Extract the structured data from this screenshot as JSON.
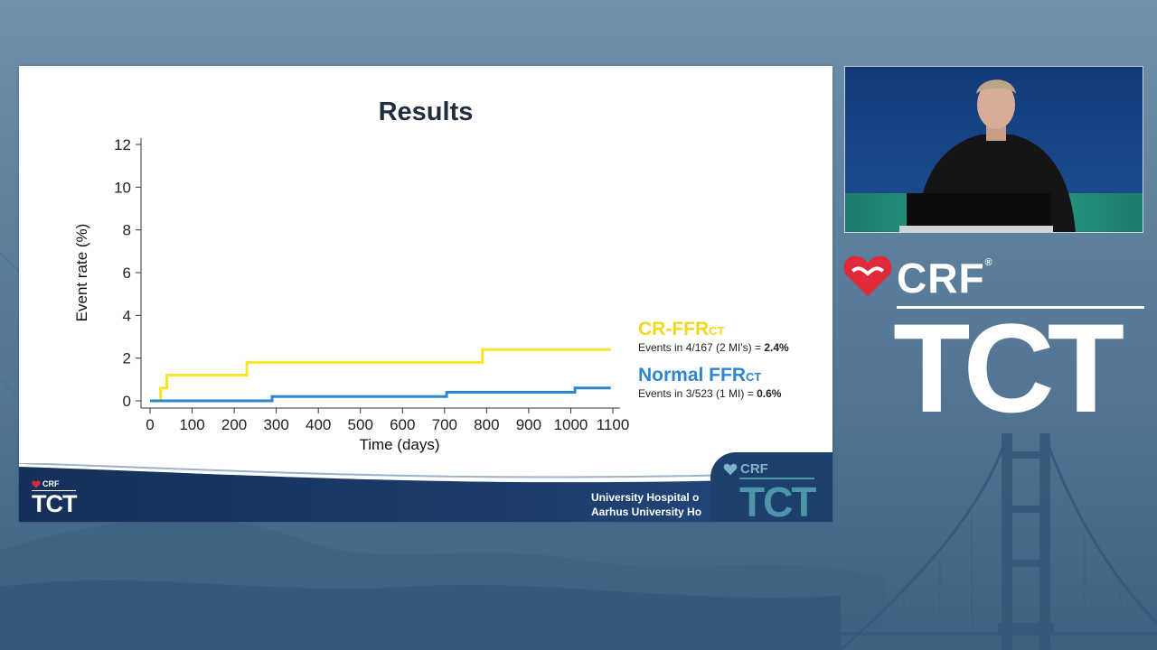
{
  "slide": {
    "title": "Results",
    "institution_line1": "University Hospital o",
    "institution_line2": "Aarhus University Ho",
    "footer_logo_crf": "CRF",
    "footer_logo_tct": "TCT"
  },
  "brand": {
    "crf": "CRF",
    "registered": "®",
    "tct": "TCT"
  },
  "legend": {
    "cr": {
      "name": "CR-FFR",
      "subscript": "CT",
      "events_text": "Events in 4/167 (2 MI's) = ",
      "rate": "2.4%"
    },
    "normal": {
      "name": "Normal FFR",
      "subscript": "CT",
      "events_text": "Events in 3/523 (1 MI) = ",
      "rate": "0.6%"
    }
  },
  "colors": {
    "cr_series": "#f5e626",
    "normal_series": "#2e86d1",
    "cr_legend": "#f2d81c",
    "normal_legend": "#2e86d1"
  },
  "chart_data": {
    "type": "line",
    "step": true,
    "xlabel": "Time (days)",
    "ylabel": "Event rate (%)",
    "xlim": [
      0,
      1100
    ],
    "ylim": [
      0,
      12
    ],
    "xticks": [
      0,
      100,
      200,
      300,
      400,
      500,
      600,
      700,
      800,
      900,
      1000,
      1100
    ],
    "yticks": [
      0,
      2,
      4,
      6,
      8,
      10,
      12
    ],
    "series": [
      {
        "name": "CR-FFRCT",
        "color": "#f5e626",
        "points": [
          [
            0,
            0
          ],
          [
            25,
            0
          ],
          [
            25,
            0.6
          ],
          [
            40,
            0.6
          ],
          [
            40,
            1.2
          ],
          [
            230,
            1.2
          ],
          [
            230,
            1.8
          ],
          [
            790,
            1.8
          ],
          [
            790,
            2.4
          ],
          [
            1095,
            2.4
          ]
        ]
      },
      {
        "name": "Normal FFRCT",
        "color": "#2e86d1",
        "points": [
          [
            0,
            0
          ],
          [
            290,
            0
          ],
          [
            290,
            0.2
          ],
          [
            705,
            0.2
          ],
          [
            705,
            0.4
          ],
          [
            1010,
            0.4
          ],
          [
            1010,
            0.6
          ],
          [
            1095,
            0.6
          ]
        ]
      }
    ]
  }
}
